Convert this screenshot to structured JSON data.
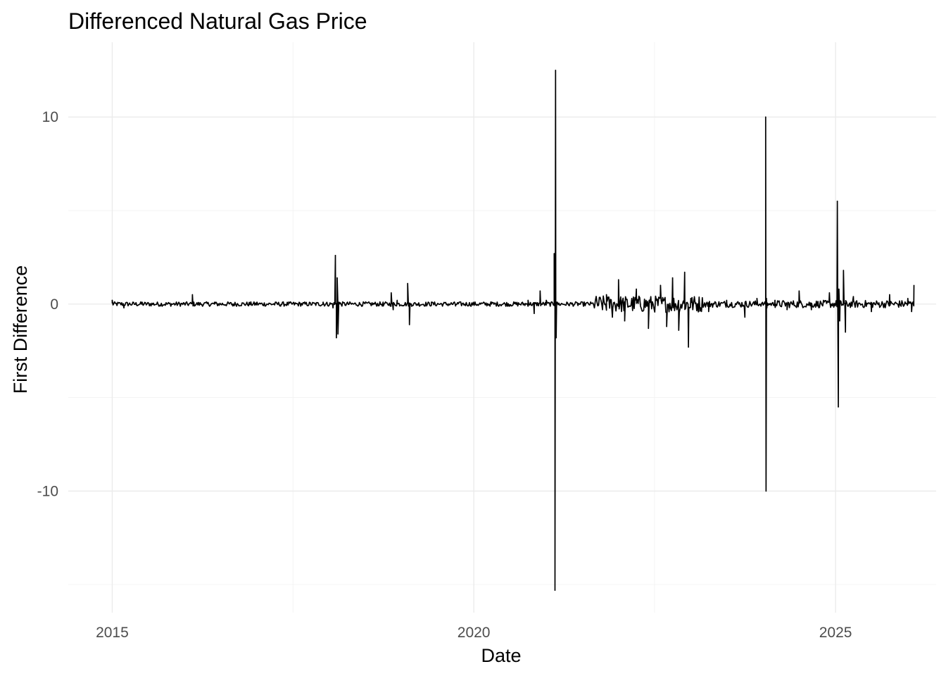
{
  "chart_data": {
    "type": "line",
    "title": "Differenced Natural Gas Price",
    "xlabel": "Date",
    "ylabel": "First Difference",
    "x_type": "date",
    "xlim": [
      "2014-05-24",
      "2026-05-24"
    ],
    "ylim": [
      -16.5,
      14
    ],
    "x_ticks": [
      {
        "value": "2015-01-01",
        "label": "2015"
      },
      {
        "value": "2020-01-01",
        "label": "2020"
      },
      {
        "value": "2025-01-01",
        "label": "2025"
      }
    ],
    "x_minor_ticks": [
      "2017-07-02",
      "2022-07-02"
    ],
    "y_ticks": [
      {
        "value": -10,
        "label": "-10"
      },
      {
        "value": 0,
        "label": "0"
      },
      {
        "value": 10,
        "label": "10"
      }
    ],
    "y_minor_ticks": [
      -15,
      -5,
      5
    ],
    "grid": true,
    "legend": "none",
    "series": [
      {
        "color": "#000000",
        "x": [
          "2015-01-01",
          "2015-03-01",
          "2015-06-01",
          "2015-09-01",
          "2016-01-01",
          "2016-02-10",
          "2016-02-20",
          "2016-06-01",
          "2016-09-01",
          "2017-01-01",
          "2017-05-01",
          "2017-09-01",
          "2017-12-01",
          "2018-01-20",
          "2018-02-01",
          "2018-02-06",
          "2018-02-10",
          "2018-02-14",
          "2018-02-20",
          "2018-03-01",
          "2018-06-01",
          "2018-10-01",
          "2018-11-10",
          "2018-11-20",
          "2018-12-10",
          "2019-02-01",
          "2019-02-10",
          "2019-02-20",
          "2019-06-01",
          "2019-10-01",
          "2020-01-01",
          "2020-04-01",
          "2020-07-01",
          "2020-10-01",
          "2020-11-01",
          "2020-12-01",
          "2021-01-01",
          "2021-02-10",
          "2021-02-14",
          "2021-02-17",
          "2021-02-20",
          "2021-02-23",
          "2021-03-01",
          "2021-06-01",
          "2021-09-01",
          "2021-11-01",
          "2021-12-01",
          "2022-01-01",
          "2022-02-01",
          "2022-04-01",
          "2022-06-01",
          "2022-08-01",
          "2022-09-01",
          "2022-10-01",
          "2022-11-01",
          "2022-12-01",
          "2022-12-20",
          "2023-01-01",
          "2023-04-01",
          "2023-07-01",
          "2023-10-01",
          "2023-12-01",
          "2024-01-14",
          "2024-01-16",
          "2024-01-18",
          "2024-01-20",
          "2024-03-01",
          "2024-05-01",
          "2024-07-01",
          "2024-09-01",
          "2024-12-01",
          "2025-01-10",
          "2025-01-15",
          "2025-01-18",
          "2025-01-22",
          "2025-02-10",
          "2025-02-20",
          "2025-04-01",
          "2025-07-01",
          "2025-10-01",
          "2026-01-01",
          "2026-01-20",
          "2026-02-01"
        ],
        "y": [
          0.2,
          -0.2,
          0.1,
          -0.1,
          0.0,
          0.5,
          -0.1,
          0.1,
          -0.1,
          0.1,
          -0.1,
          0.0,
          0.1,
          -0.2,
          2.6,
          -1.8,
          1.4,
          -1.6,
          0.1,
          0.0,
          0.0,
          -0.1,
          0.6,
          -0.3,
          0.2,
          1.1,
          -1.1,
          0.0,
          0.1,
          -0.1,
          0.0,
          0.1,
          -0.1,
          0.2,
          -0.5,
          0.7,
          0.2,
          2.7,
          -15.3,
          12.5,
          -1.8,
          0.1,
          0.0,
          0.1,
          -0.2,
          0.5,
          -0.7,
          1.3,
          -0.9,
          0.8,
          -1.3,
          1.0,
          -1.2,
          1.4,
          -1.4,
          1.7,
          -2.3,
          0.3,
          -0.4,
          0.2,
          -0.7,
          0.3,
          10.0,
          -10.0,
          0.3,
          -0.2,
          0.2,
          -0.3,
          0.7,
          -0.3,
          0.6,
          5.5,
          -5.5,
          0.8,
          -0.9,
          1.8,
          -1.5,
          0.4,
          -0.4,
          0.5,
          0.3,
          -0.4,
          1.0
        ]
      }
    ]
  }
}
